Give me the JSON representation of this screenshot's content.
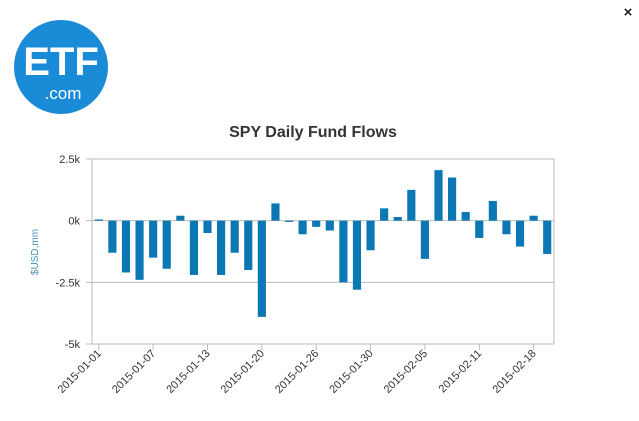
{
  "logo": {
    "main": "ETF",
    "sub": ".com"
  },
  "close": "×",
  "chart_data": {
    "type": "bar",
    "title": "SPY Daily Fund Flows",
    "y_label": "$USD,mm",
    "categories": [
      "2015-01-01",
      null,
      null,
      null,
      "2015-01-07",
      null,
      null,
      null,
      "2015-01-13",
      null,
      null,
      null,
      "2015-01-20",
      null,
      null,
      null,
      "2015-01-26",
      null,
      null,
      null,
      "2015-01-30",
      null,
      null,
      null,
      "2015-02-05",
      null,
      null,
      null,
      "2015-02-11",
      null,
      null,
      null,
      "2015-02-18",
      null
    ],
    "values": [
      50,
      -1300,
      -2100,
      -2400,
      -1500,
      -1950,
      200,
      -2200,
      -500,
      -2200,
      -1300,
      -2000,
      -3900,
      700,
      -50,
      -550,
      -250,
      -400,
      -2500,
      -2800,
      -1200,
      500,
      150,
      1250,
      -1550,
      2050,
      1750,
      350,
      -700,
      800,
      -550,
      -1050,
      200,
      -1350
    ],
    "color": "#0b78b4",
    "ylim": [
      -5000,
      2500
    ],
    "yticks": [
      {
        "value": -5000,
        "label": "-5k"
      },
      {
        "value": -2500,
        "label": "-2.5k"
      },
      {
        "value": 0,
        "label": "0k"
      },
      {
        "value": 2500,
        "label": "2.5k"
      }
    ],
    "grid": true
  }
}
